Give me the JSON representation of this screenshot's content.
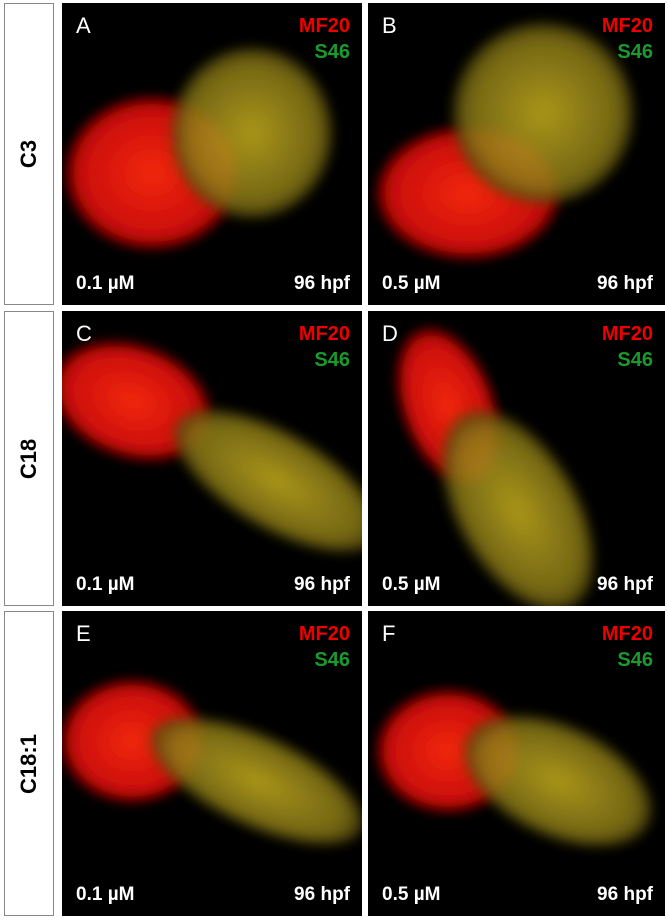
{
  "rows": [
    {
      "label": "C3",
      "panels": [
        {
          "letter": "A",
          "stain1": "MF20",
          "stain2": "S46",
          "dose": "0.1 µM",
          "time": "96 hpf"
        },
        {
          "letter": "B",
          "stain1": "MF20",
          "stain2": "S46",
          "dose": "0.5 µM",
          "time": "96 hpf"
        }
      ]
    },
    {
      "label": "C18",
      "panels": [
        {
          "letter": "C",
          "stain1": "MF20",
          "stain2": "S46",
          "dose": "0.1 µM",
          "time": "96 hpf"
        },
        {
          "letter": "D",
          "stain1": "MF20",
          "stain2": "S46",
          "dose": "0.5 µM",
          "time": "96 hpf"
        }
      ]
    },
    {
      "label": "C18:1",
      "panels": [
        {
          "letter": "E",
          "stain1": "MF20",
          "stain2": "S46",
          "dose": "0.1 µM",
          "time": "96 hpf"
        },
        {
          "letter": "F",
          "stain1": "MF20",
          "stain2": "S46",
          "dose": "0.5 µM",
          "time": "96 hpf"
        }
      ]
    }
  ]
}
